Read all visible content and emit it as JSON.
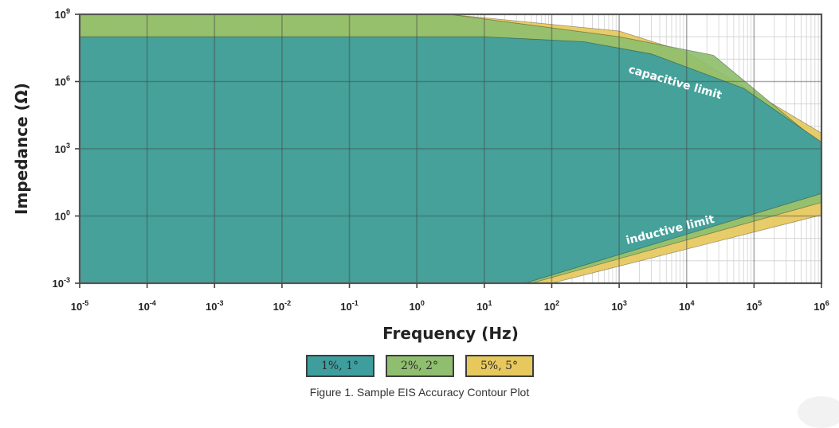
{
  "chart_data": {
    "type": "area",
    "xlabel": "Frequency (Hz)",
    "ylabel": "Impedance (Ω)",
    "x_scale": "log",
    "y_scale": "log",
    "xlim": [
      1e-05,
      1000000.0
    ],
    "ylim": [
      0.001,
      1000000000.0
    ],
    "x_ticks": [
      {
        "v": 1e-05,
        "base": "10",
        "exp": "-5"
      },
      {
        "v": 0.0001,
        "base": "10",
        "exp": "-4"
      },
      {
        "v": 0.001,
        "base": "10",
        "exp": "-3"
      },
      {
        "v": 0.01,
        "base": "10",
        "exp": "-2"
      },
      {
        "v": 0.1,
        "base": "10",
        "exp": "-1"
      },
      {
        "v": 1.0,
        "base": "10",
        "exp": "0"
      },
      {
        "v": 10.0,
        "base": "10",
        "exp": "1"
      },
      {
        "v": 100.0,
        "base": "10",
        "exp": "2"
      },
      {
        "v": 1000.0,
        "base": "10",
        "exp": "3"
      },
      {
        "v": 10000.0,
        "base": "10",
        "exp": "4"
      },
      {
        "v": 100000.0,
        "base": "10",
        "exp": "5"
      },
      {
        "v": 1000000.0,
        "base": "10",
        "exp": "6"
      }
    ],
    "y_ticks": [
      {
        "v": 1000000000.0,
        "base": "10",
        "exp": "9"
      },
      {
        "v": 1000000.0,
        "base": "10",
        "exp": "6"
      },
      {
        "v": 1000.0,
        "base": "10",
        "exp": "3"
      },
      {
        "v": 1.0,
        "base": "10",
        "exp": "0"
      },
      {
        "v": 0.001,
        "base": "10",
        "exp": "-3"
      }
    ],
    "grid": true,
    "series": [
      {
        "name": "5%, 5°",
        "color": "#e6c85c",
        "upper": [
          [
            1e-05,
            1000000000.0
          ],
          [
            3,
            1000000000.0
          ],
          [
            1000.0,
            180000000.0
          ],
          [
            10000.0,
            20000000.0
          ],
          [
            1000000.0,
            5000.0
          ]
        ],
        "lower": [
          [
            100,
            0.001
          ],
          [
            1000000.0,
            1.1
          ]
        ]
      },
      {
        "name": "2%, 2°",
        "color": "#8fbf6e",
        "upper": [
          [
            1e-05,
            1000000000.0
          ],
          [
            3,
            1000000000.0
          ],
          [
            1000.0,
            100000000.0
          ],
          [
            25000.0,
            15000000.0
          ],
          [
            1000000.0,
            1500.0
          ]
        ],
        "lower": [
          [
            50,
            0.001
          ],
          [
            1000000.0,
            4
          ]
        ]
      },
      {
        "name": "1%, 1°",
        "color": "#3e9e9e",
        "upper": [
          [
            1e-05,
            100000000.0
          ],
          [
            10,
            100000000.0
          ],
          [
            300,
            60000000.0
          ],
          [
            3000.0,
            17000000.0
          ],
          [
            70000.0,
            500000.0
          ],
          [
            1000000.0,
            2000.0
          ]
        ],
        "lower": [
          [
            40,
            0.001
          ],
          [
            1000000.0,
            10
          ]
        ]
      }
    ],
    "annotations": [
      "capacitive limit",
      "inductive limit"
    ]
  },
  "legend": [
    {
      "label": "1%, 1°",
      "color": "#3e9e9e"
    },
    {
      "label": "2%, 2°",
      "color": "#8fbf6e"
    },
    {
      "label": "5%, 5°",
      "color": "#e6c85c"
    }
  ],
  "caption": "Figure 1. Sample EIS Accuracy Contour Plot"
}
